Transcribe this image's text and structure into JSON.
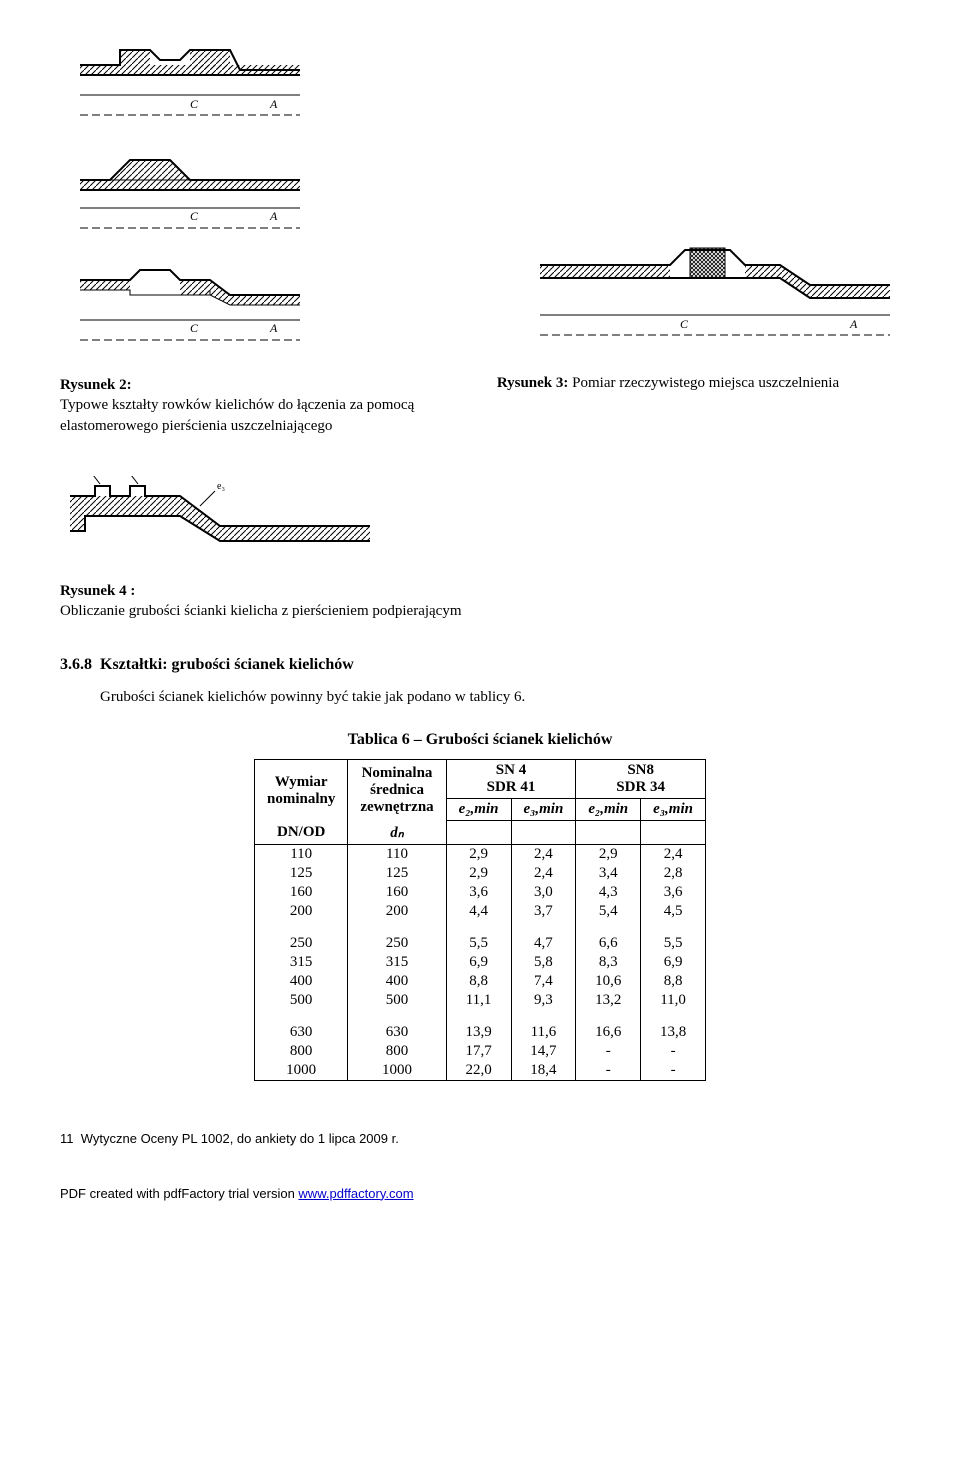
{
  "fig2": {
    "title": "Rysunek 2:",
    "text": "Typowe kształty rowków kielichów do łączenia za pomocą elastomerowego pierścienia uszczelniającego"
  },
  "fig3": {
    "title": "Rysunek 3:",
    "text": "Pomiar rzeczywistego miejsca uszczelnienia"
  },
  "fig4": {
    "title": "Rysunek 4 :",
    "text": "Obliczanie grubości ścianki kielicha z pierścieniem podpierającym"
  },
  "section": {
    "num": "3.6.8",
    "title": "Kształtki: grubości ścianek kielichów",
    "body": "Grubości ścianek kielichów powinny być takie jak podano w tablicy 6."
  },
  "table": {
    "title": "Tablica 6 – Grubości ścianek kielichów",
    "headers": {
      "col1_l1": "Wymiar",
      "col1_l2": "nominalny",
      "col1_l3": "DN/OD",
      "col2_l1": "Nominalna",
      "col2_l2": "średnica",
      "col2_l3": "zewnętrzna",
      "col2_l4": "dₙ",
      "sn4": "SN 4",
      "sdr41": "SDR 41",
      "sn8": "SN8",
      "sdr34": "SDR 34",
      "e2min_a": "e₂,min",
      "e3min_a": "e₃,min",
      "e2min_b": "e₂,min",
      "e3min_b": "e₃,min"
    },
    "rows": [
      [
        "110",
        "110",
        "2,9",
        "2,4",
        "2,9",
        "2,4"
      ],
      [
        "125",
        "125",
        "2,9",
        "2,4",
        "3,4",
        "2,8"
      ],
      [
        "160",
        "160",
        "3,6",
        "3,0",
        "4,3",
        "3,6"
      ],
      [
        "200",
        "200",
        "4,4",
        "3,7",
        "5,4",
        "4,5"
      ]
    ],
    "rows2": [
      [
        "250",
        "250",
        "5,5",
        "4,7",
        "6,6",
        "5,5"
      ],
      [
        "315",
        "315",
        "6,9",
        "5,8",
        "8,3",
        "6,9"
      ],
      [
        "400",
        "400",
        "8,8",
        "7,4",
        "10,6",
        "8,8"
      ],
      [
        "500",
        "500",
        "11,1",
        "9,3",
        "13,2",
        "11,0"
      ]
    ],
    "rows3": [
      [
        "630",
        "630",
        "13,9",
        "11,6",
        "16,6",
        "13,8"
      ],
      [
        "800",
        "800",
        "17,7",
        "14,7",
        "-",
        "-"
      ],
      [
        "1000",
        "1000",
        "22,0",
        "18,4",
        "-",
        "-"
      ]
    ]
  },
  "footer": {
    "page": "11",
    "text": "Wytyczne Oceny PL 1002, do ankiety do 1 lipca 2009 r."
  },
  "pdf": {
    "text": "PDF created with pdfFactory trial version ",
    "link": "www.pdffactory.com"
  }
}
